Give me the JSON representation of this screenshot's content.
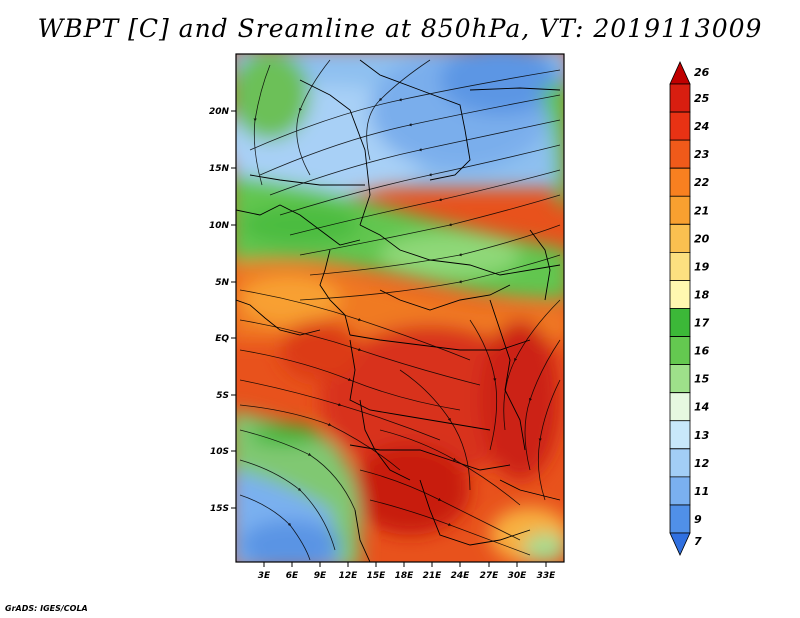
{
  "title": "WBPT [C] and Sreamline at 850hPa, VT: 2019113009",
  "credit": "GrADS: IGES/COLA",
  "lat_labels": [
    "20N",
    "15N",
    "10N",
    "5N",
    "EQ",
    "5S",
    "10S",
    "15S"
  ],
  "lon_labels": [
    "3E",
    "6E",
    "9E",
    "12E",
    "15E",
    "18E",
    "21E",
    "24E",
    "27E",
    "30E",
    "33E"
  ],
  "colorbar": {
    "levels": [
      "26",
      "25",
      "24",
      "23",
      "22",
      "21",
      "20",
      "19",
      "18",
      "17",
      "16",
      "15",
      "14",
      "13",
      "12",
      "11",
      "9",
      "7"
    ],
    "colors": [
      "#c00000",
      "#d81e10",
      "#e83214",
      "#f05a1a",
      "#f88020",
      "#f8a030",
      "#fac050",
      "#fce080",
      "#fff8b0",
      "#3cb838",
      "#64c850",
      "#9ee08a",
      "#e6f8e0",
      "#c8e8fa",
      "#a2cef6",
      "#7ab0f0",
      "#5090e8",
      "#3070e0"
    ]
  }
}
